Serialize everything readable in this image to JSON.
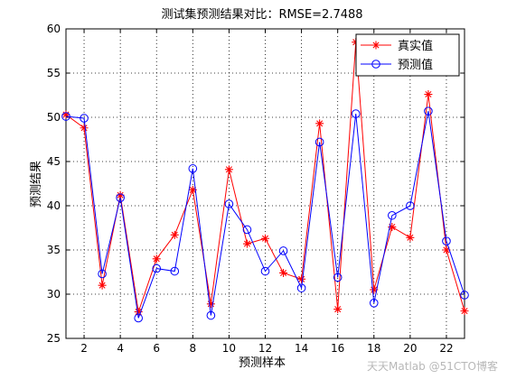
{
  "chart_data": {
    "type": "line",
    "title": "测试集预测结果对比：RMSE=2.7488",
    "xlabel": "预测样本",
    "ylabel": "预测结果",
    "xlim": [
      1,
      23
    ],
    "ylim": [
      25,
      60
    ],
    "xticks": [
      2,
      4,
      6,
      8,
      10,
      12,
      14,
      16,
      18,
      20,
      22
    ],
    "yticks": [
      25,
      30,
      35,
      40,
      45,
      50,
      55,
      60
    ],
    "grid": true,
    "legend_position": "top-right",
    "x": [
      1,
      2,
      3,
      4,
      5,
      6,
      7,
      8,
      9,
      10,
      11,
      12,
      13,
      14,
      15,
      16,
      17,
      18,
      19,
      20,
      21,
      22,
      23
    ],
    "series": [
      {
        "name": "真实值",
        "color": "#ff0000",
        "marker": "star",
        "values": [
          50.3,
          48.8,
          31.0,
          41.2,
          28.0,
          34.0,
          36.7,
          41.8,
          28.9,
          44.1,
          35.7,
          36.3,
          32.4,
          31.7,
          49.3,
          28.3,
          58.5,
          30.5,
          37.6,
          36.4,
          52.6,
          35.0,
          28.1
        ]
      },
      {
        "name": "预测值",
        "color": "#0000ff",
        "marker": "circle",
        "values": [
          50.1,
          49.9,
          32.3,
          40.9,
          27.3,
          32.9,
          32.6,
          44.2,
          27.6,
          40.2,
          37.3,
          32.6,
          34.9,
          30.7,
          47.2,
          31.9,
          50.4,
          29.0,
          38.9,
          40.0,
          50.7,
          36.0,
          29.9
        ]
      }
    ]
  },
  "watermark": "天天Matlab @51CTO博客"
}
